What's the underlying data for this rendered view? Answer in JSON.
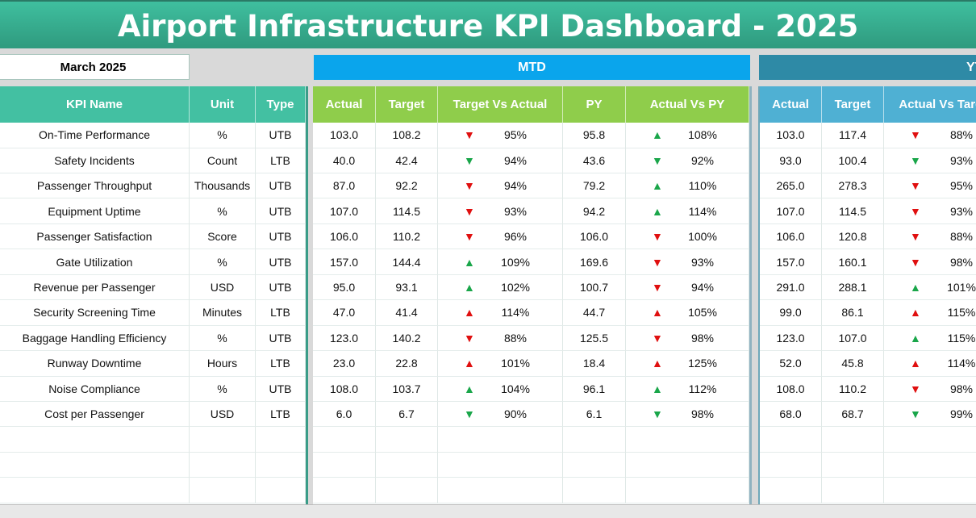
{
  "title": "Airport Infrastructure KPI Dashboard - 2025",
  "selected_month": "March 2025",
  "sections": {
    "mtd": "MTD",
    "ytd": "YTD"
  },
  "headers": {
    "kpi": "KPI Name",
    "unit": "Unit",
    "type": "Type",
    "mtd": [
      "Actual",
      "Target",
      "Target Vs Actual",
      "PY",
      "Actual Vs PY"
    ],
    "ytd": [
      "Actual",
      "Target",
      "Actual Vs Target"
    ]
  },
  "colors": {
    "good": "#1aa64a",
    "bad": "#e01010"
  },
  "rows": [
    {
      "name": "On-Time Performance",
      "unit": "%",
      "type": "UTB",
      "actual": "103.0",
      "target": "108.2",
      "tva": {
        "dir": "down",
        "status": "bad",
        "pct": "95%"
      },
      "py": "95.8",
      "avp": {
        "dir": "up",
        "status": "good",
        "pct": "108%"
      },
      "ytd_actual": "103.0",
      "ytd_target": "117.4",
      "ytd_avt": {
        "dir": "down",
        "status": "bad",
        "pct": "88%"
      }
    },
    {
      "name": "Safety Incidents",
      "unit": "Count",
      "type": "LTB",
      "actual": "40.0",
      "target": "42.4",
      "tva": {
        "dir": "down",
        "status": "good",
        "pct": "94%"
      },
      "py": "43.6",
      "avp": {
        "dir": "down",
        "status": "good",
        "pct": "92%"
      },
      "ytd_actual": "93.0",
      "ytd_target": "100.4",
      "ytd_avt": {
        "dir": "down",
        "status": "good",
        "pct": "93%"
      }
    },
    {
      "name": "Passenger Throughput",
      "unit": "Thousands",
      "type": "UTB",
      "actual": "87.0",
      "target": "92.2",
      "tva": {
        "dir": "down",
        "status": "bad",
        "pct": "94%"
      },
      "py": "79.2",
      "avp": {
        "dir": "up",
        "status": "good",
        "pct": "110%"
      },
      "ytd_actual": "265.0",
      "ytd_target": "278.3",
      "ytd_avt": {
        "dir": "down",
        "status": "bad",
        "pct": "95%"
      }
    },
    {
      "name": "Equipment Uptime",
      "unit": "%",
      "type": "UTB",
      "actual": "107.0",
      "target": "114.5",
      "tva": {
        "dir": "down",
        "status": "bad",
        "pct": "93%"
      },
      "py": "94.2",
      "avp": {
        "dir": "up",
        "status": "good",
        "pct": "114%"
      },
      "ytd_actual": "107.0",
      "ytd_target": "114.5",
      "ytd_avt": {
        "dir": "down",
        "status": "bad",
        "pct": "93%"
      }
    },
    {
      "name": "Passenger Satisfaction",
      "unit": "Score",
      "type": "UTB",
      "actual": "106.0",
      "target": "110.2",
      "tva": {
        "dir": "down",
        "status": "bad",
        "pct": "96%"
      },
      "py": "106.0",
      "avp": {
        "dir": "down",
        "status": "bad",
        "pct": "100%"
      },
      "ytd_actual": "106.0",
      "ytd_target": "120.8",
      "ytd_avt": {
        "dir": "down",
        "status": "bad",
        "pct": "88%"
      }
    },
    {
      "name": "Gate Utilization",
      "unit": "%",
      "type": "UTB",
      "actual": "157.0",
      "target": "144.4",
      "tva": {
        "dir": "up",
        "status": "good",
        "pct": "109%"
      },
      "py": "169.6",
      "avp": {
        "dir": "down",
        "status": "bad",
        "pct": "93%"
      },
      "ytd_actual": "157.0",
      "ytd_target": "160.1",
      "ytd_avt": {
        "dir": "down",
        "status": "bad",
        "pct": "98%"
      }
    },
    {
      "name": "Revenue per Passenger",
      "unit": "USD",
      "type": "UTB",
      "actual": "95.0",
      "target": "93.1",
      "tva": {
        "dir": "up",
        "status": "good",
        "pct": "102%"
      },
      "py": "100.7",
      "avp": {
        "dir": "down",
        "status": "bad",
        "pct": "94%"
      },
      "ytd_actual": "291.0",
      "ytd_target": "288.1",
      "ytd_avt": {
        "dir": "up",
        "status": "good",
        "pct": "101%"
      }
    },
    {
      "name": "Security Screening Time",
      "unit": "Minutes",
      "type": "LTB",
      "actual": "47.0",
      "target": "41.4",
      "tva": {
        "dir": "up",
        "status": "bad",
        "pct": "114%"
      },
      "py": "44.7",
      "avp": {
        "dir": "up",
        "status": "bad",
        "pct": "105%"
      },
      "ytd_actual": "99.0",
      "ytd_target": "86.1",
      "ytd_avt": {
        "dir": "up",
        "status": "bad",
        "pct": "115%"
      }
    },
    {
      "name": "Baggage Handling Efficiency",
      "unit": "%",
      "type": "UTB",
      "actual": "123.0",
      "target": "140.2",
      "tva": {
        "dir": "down",
        "status": "bad",
        "pct": "88%"
      },
      "py": "125.5",
      "avp": {
        "dir": "down",
        "status": "bad",
        "pct": "98%"
      },
      "ytd_actual": "123.0",
      "ytd_target": "107.0",
      "ytd_avt": {
        "dir": "up",
        "status": "good",
        "pct": "115%"
      }
    },
    {
      "name": "Runway Downtime",
      "unit": "Hours",
      "type": "LTB",
      "actual": "23.0",
      "target": "22.8",
      "tva": {
        "dir": "up",
        "status": "bad",
        "pct": "101%"
      },
      "py": "18.4",
      "avp": {
        "dir": "up",
        "status": "bad",
        "pct": "125%"
      },
      "ytd_actual": "52.0",
      "ytd_target": "45.8",
      "ytd_avt": {
        "dir": "up",
        "status": "bad",
        "pct": "114%"
      }
    },
    {
      "name": "Noise Compliance",
      "unit": "%",
      "type": "UTB",
      "actual": "108.0",
      "target": "103.7",
      "tva": {
        "dir": "up",
        "status": "good",
        "pct": "104%"
      },
      "py": "96.1",
      "avp": {
        "dir": "up",
        "status": "good",
        "pct": "112%"
      },
      "ytd_actual": "108.0",
      "ytd_target": "110.2",
      "ytd_avt": {
        "dir": "down",
        "status": "bad",
        "pct": "98%"
      }
    },
    {
      "name": "Cost per Passenger",
      "unit": "USD",
      "type": "LTB",
      "actual": "6.0",
      "target": "6.7",
      "tva": {
        "dir": "down",
        "status": "good",
        "pct": "90%"
      },
      "py": "6.1",
      "avp": {
        "dir": "down",
        "status": "good",
        "pct": "98%"
      },
      "ytd_actual": "68.0",
      "ytd_target": "68.7",
      "ytd_avt": {
        "dir": "down",
        "status": "good",
        "pct": "99%"
      }
    }
  ]
}
